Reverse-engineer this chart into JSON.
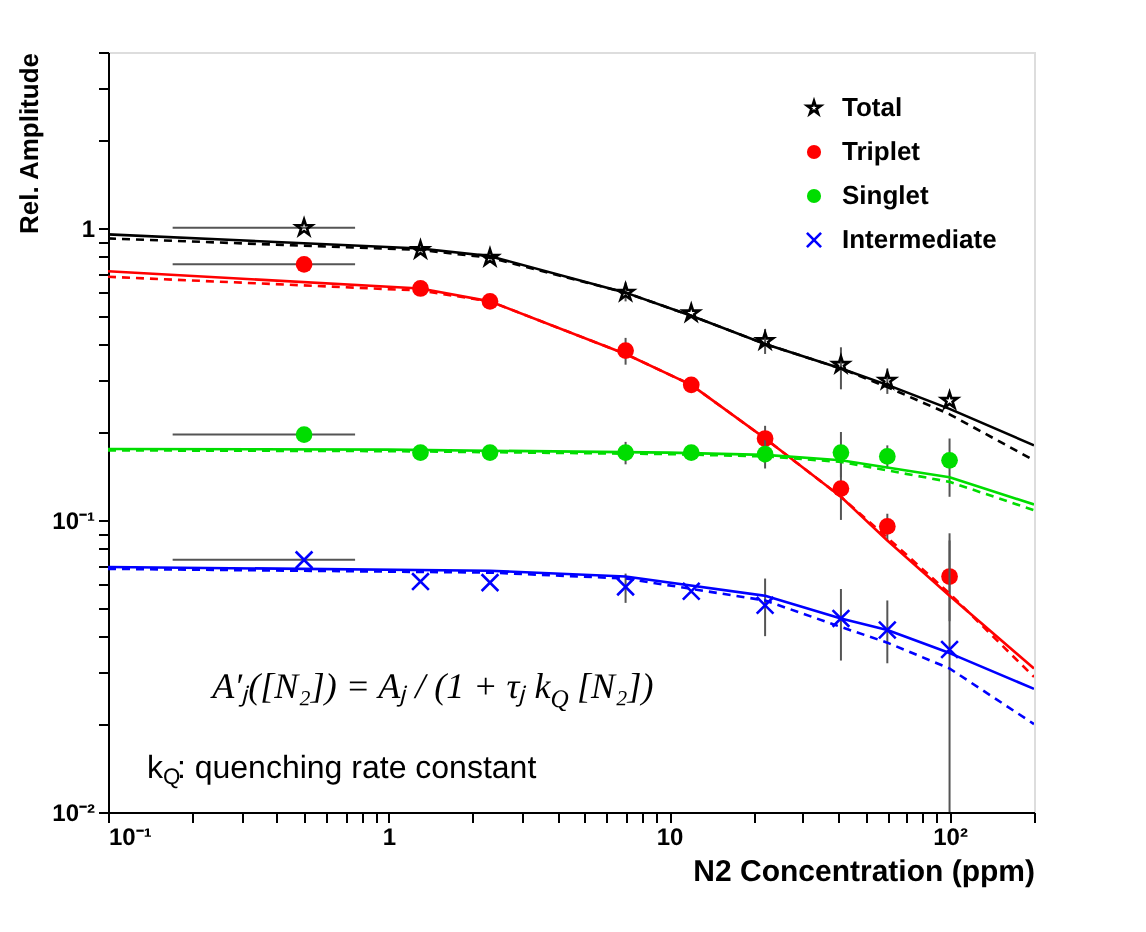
{
  "chart_data": {
    "type": "scatter",
    "xlabel": "N2 Concentration (ppm)",
    "ylabel": "Rel. Amplitude",
    "log": "xy",
    "grid": false,
    "legend": "top right",
    "xlim": [
      0.1,
      200
    ],
    "ylim": [
      0.01,
      4
    ],
    "xticks": [
      {
        "value": 0.1,
        "label": "10⁻¹"
      },
      {
        "value": 0.2,
        "label": null
      },
      {
        "value": 0.3,
        "label": null
      },
      {
        "value": 0.4,
        "label": null
      },
      {
        "value": 0.5,
        "label": null
      },
      {
        "value": 0.6,
        "label": null
      },
      {
        "value": 0.7,
        "label": null
      },
      {
        "value": 0.8,
        "label": null
      },
      {
        "value": 0.9,
        "label": null
      },
      1,
      {
        "value": 2,
        "label": null
      },
      {
        "value": 3,
        "label": null
      },
      {
        "value": 4,
        "label": null
      },
      {
        "value": 5,
        "label": null
      },
      {
        "value": 6,
        "label": null
      },
      {
        "value": 7,
        "label": null
      },
      {
        "value": 8,
        "label": null
      },
      {
        "value": 9,
        "label": null
      },
      10,
      {
        "value": 20,
        "label": null
      },
      {
        "value": 30,
        "label": null
      },
      {
        "value": 40,
        "label": null
      },
      {
        "value": 50,
        "label": null
      },
      {
        "value": 60,
        "label": null
      },
      {
        "value": 70,
        "label": null
      },
      {
        "value": 80,
        "label": null
      },
      {
        "value": 90,
        "label": null
      },
      {
        "value": 100,
        "label": "10²"
      },
      {
        "value": 200,
        "label": null
      }
    ],
    "yticks": [
      {
        "value": 0.01,
        "label": "10⁻²"
      },
      {
        "value": 0.02,
        "label": null
      },
      {
        "value": 0.03,
        "label": null
      },
      {
        "value": 0.04,
        "label": null
      },
      {
        "value": 0.05,
        "label": null
      },
      {
        "value": 0.06,
        "label": null
      },
      {
        "value": 0.07,
        "label": null
      },
      {
        "value": 0.08,
        "label": null
      },
      {
        "value": 0.09,
        "label": null
      },
      {
        "value": 0.1,
        "label": "10⁻¹"
      },
      {
        "value": 0.2,
        "label": null
      },
      {
        "value": 0.3,
        "label": null
      },
      {
        "value": 0.4,
        "label": null
      },
      {
        "value": 0.5,
        "label": null
      },
      {
        "value": 0.6,
        "label": null
      },
      {
        "value": 0.7,
        "label": null
      },
      {
        "value": 0.8,
        "label": null
      },
      {
        "value": 0.9,
        "label": null
      },
      1,
      {
        "value": 2,
        "label": null
      },
      {
        "value": 3,
        "label": null
      },
      {
        "value": 4,
        "label": null
      }
    ],
    "x": [
      0.5,
      1.3,
      2.3,
      7,
      12,
      22,
      41,
      60,
      100
    ],
    "annotations": [
      "A′ⱼ([N₂]) = Aⱼ / (1 + τⱼ k$_{Q}$ [N₂])",
      "k$_{Q}$: quenching rate constant"
    ],
    "series": [
      {
        "name": "Total",
        "color": "#000000",
        "marker": "star",
        "values": [
          1.0,
          0.84,
          0.79,
          0.6,
          0.51,
          0.41,
          0.34,
          0.3,
          0.256
        ],
        "errors": [
          null,
          null,
          null,
          [
            0.56,
            0.65
          ],
          null,
          [
            0.37,
            0.45
          ],
          [
            0.28,
            0.39
          ],
          [
            0.27,
            0.33
          ],
          null
        ],
        "xerrors": [
          [
            0.17,
            0.76
          ],
          null,
          null,
          null,
          null,
          null,
          null,
          null,
          null
        ]
      },
      {
        "name": "Triplet",
        "color": "#ff0000",
        "marker": "circle",
        "values": [
          0.75,
          0.62,
          0.56,
          0.38,
          0.29,
          0.19,
          0.128,
          0.095,
          0.064
        ],
        "errors": [
          null,
          null,
          null,
          [
            0.34,
            0.42
          ],
          null,
          [
            0.17,
            0.21
          ],
          [
            0.1,
            0.16
          ],
          [
            0.085,
            0.105
          ],
          [
            0.045,
            0.09
          ]
        ],
        "xerrors": [
          [
            0.17,
            0.76
          ],
          null,
          null,
          null,
          null,
          null,
          null,
          null,
          null
        ]
      },
      {
        "name": "Singlet",
        "color": "#00dd00",
        "marker": "circle",
        "values": [
          0.196,
          0.17,
          0.17,
          0.17,
          0.17,
          0.168,
          0.17,
          0.165,
          0.16
        ],
        "errors": [
          null,
          null,
          null,
          [
            0.155,
            0.185
          ],
          null,
          [
            0.15,
            0.19
          ],
          [
            0.14,
            0.2
          ],
          [
            0.15,
            0.18
          ],
          [
            0.12,
            0.19
          ]
        ],
        "xerrors": [
          [
            0.17,
            0.76
          ],
          null,
          null,
          null,
          null,
          null,
          null,
          null,
          null
        ]
      },
      {
        "name": "Intermediate",
        "color": "#0000ff",
        "marker": "cross",
        "values": [
          0.073,
          0.0615,
          0.061,
          0.059,
          0.057,
          0.051,
          0.046,
          0.042,
          0.036
        ],
        "errors": [
          null,
          null,
          null,
          [
            0.052,
            0.0655
          ],
          null,
          [
            0.04,
            0.063
          ],
          [
            0.033,
            0.058
          ],
          [
            0.0323,
            0.053
          ],
          [
            0.01,
            0.085
          ]
        ],
        "xerrors": [
          [
            0.17,
            0.76
          ],
          null,
          null,
          null,
          null,
          null,
          null,
          null,
          null
        ]
      },
      {
        "type": "line",
        "color": "#000000",
        "line_style": "solid",
        "marker": "none",
        "x": [
          0.1,
          1.3,
          2.3,
          7,
          12,
          22,
          41,
          60,
          100,
          200
        ],
        "values": [
          0.95,
          0.85,
          0.8,
          0.6,
          0.5,
          0.4,
          0.33,
          0.29,
          0.24,
          0.18
        ]
      },
      {
        "type": "line",
        "color": "#000000",
        "line_style": "dashed",
        "marker": "none",
        "x": [
          0.1,
          1.3,
          2.3,
          7,
          12,
          22,
          41,
          60,
          100,
          200
        ],
        "values": [
          0.92,
          0.84,
          0.79,
          0.6,
          0.5,
          0.4,
          0.33,
          0.285,
          0.23,
          0.16
        ]
      },
      {
        "type": "line",
        "color": "#ff0000",
        "line_style": "solid",
        "marker": "none",
        "x": [
          0.1,
          1.3,
          2.3,
          7,
          12,
          22,
          41,
          60,
          100,
          200
        ],
        "values": [
          0.71,
          0.62,
          0.56,
          0.37,
          0.29,
          0.19,
          0.12,
          0.085,
          0.055,
          0.031
        ]
      },
      {
        "type": "line",
        "color": "#ff0000",
        "line_style": "dashed",
        "marker": "none",
        "x": [
          0.1,
          1.3,
          2.3,
          7,
          12,
          22,
          41,
          60,
          100,
          200
        ],
        "values": [
          0.68,
          0.61,
          0.56,
          0.37,
          0.29,
          0.19,
          0.12,
          0.087,
          0.056,
          0.029
        ]
      },
      {
        "type": "line",
        "color": "#00dd00",
        "line_style": "solid",
        "marker": "none",
        "x": [
          0.1,
          1,
          10,
          22,
          41,
          100,
          200
        ],
        "values": [
          0.175,
          0.174,
          0.17,
          0.167,
          0.16,
          0.14,
          0.113
        ]
      },
      {
        "type": "line",
        "color": "#00dd00",
        "line_style": "dashed",
        "marker": "none",
        "x": [
          0.1,
          1,
          10,
          22,
          41,
          100,
          200
        ],
        "values": [
          0.173,
          0.172,
          0.168,
          0.165,
          0.158,
          0.135,
          0.108
        ]
      },
      {
        "type": "line",
        "color": "#0000ff",
        "line_style": "solid",
        "marker": "none",
        "x": [
          0.1,
          2.3,
          7,
          22,
          41,
          60,
          100,
          200
        ],
        "values": [
          0.069,
          0.067,
          0.064,
          0.055,
          0.046,
          0.042,
          0.035,
          0.0264
        ]
      },
      {
        "type": "line",
        "color": "#0000ff",
        "line_style": "dashed",
        "marker": "none",
        "x": [
          0.1,
          2.3,
          7,
          22,
          41,
          60,
          100,
          200
        ],
        "values": [
          0.068,
          0.066,
          0.063,
          0.053,
          0.043,
          0.038,
          0.031,
          0.02
        ]
      }
    ]
  }
}
